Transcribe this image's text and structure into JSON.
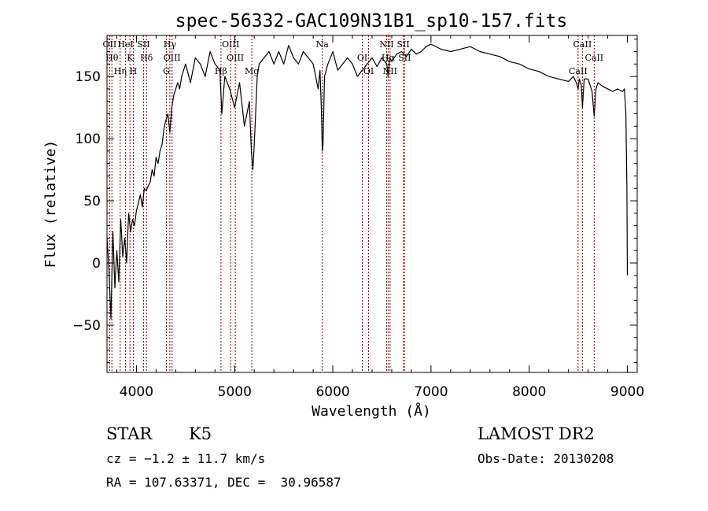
{
  "chart_data": {
    "type": "line",
    "title": "spec-56332-GAC109N31B1_sp10-157.fits",
    "xlabel": "Wavelength (Å)",
    "ylabel": "Flux (relative)",
    "xlim": [
      3700,
      9100
    ],
    "ylim": [
      -88,
      183
    ],
    "xticks": [
      {
        "value": 4000,
        "label": "4000"
      },
      {
        "value": 5000,
        "label": "5000"
      },
      {
        "value": 6000,
        "label": "6000"
      },
      {
        "value": 7000,
        "label": "7000"
      },
      {
        "value": 8000,
        "label": "8000"
      },
      {
        "value": 9000,
        "label": "9000"
      }
    ],
    "yticks": [
      {
        "value": -50,
        "label": "−50"
      },
      {
        "value": 0,
        "label": "0"
      },
      {
        "value": 50,
        "label": "50"
      },
      {
        "value": 100,
        "label": "100"
      },
      {
        "value": 150,
        "label": "150"
      }
    ],
    "line_color": "#000000",
    "marker_color": "#8b0000",
    "series": [
      {
        "x": [
          3700,
          3720,
          3740,
          3760,
          3780,
          3800,
          3820,
          3840,
          3860,
          3880,
          3900,
          3920,
          3940,
          3960,
          3980,
          4000,
          4020,
          4040,
          4060,
          4080,
          4100,
          4120,
          4140,
          4160,
          4180,
          4200,
          4220,
          4240,
          4260,
          4280,
          4300,
          4320,
          4340,
          4360,
          4380,
          4400,
          4420,
          4440,
          4460,
          4480,
          4500,
          4550,
          4600,
          4650,
          4700,
          4750,
          4800,
          4850,
          4870,
          4900,
          4950,
          5000,
          5050,
          5100,
          5150,
          5170,
          5185,
          5200,
          5230,
          5250,
          5300,
          5350,
          5400,
          5450,
          5500,
          5550,
          5600,
          5650,
          5700,
          5750,
          5800,
          5850,
          5870,
          5885,
          5893,
          5900,
          5915,
          5950,
          6000,
          6050,
          6100,
          6150,
          6200,
          6250,
          6300,
          6350,
          6400,
          6450,
          6500,
          6550,
          6563,
          6580,
          6600,
          6650,
          6700,
          6750,
          6800,
          6850,
          6900,
          6950,
          7000,
          7100,
          7200,
          7300,
          7400,
          7500,
          7600,
          7700,
          7800,
          7900,
          8000,
          8100,
          8200,
          8300,
          8400,
          8450,
          8480,
          8498,
          8510,
          8530,
          8542,
          8560,
          8600,
          8640,
          8662,
          8680,
          8700,
          8750,
          8800,
          8850,
          8900,
          8950,
          8970,
          8985,
          8995,
          9000
        ],
        "y": [
          20,
          -5,
          -45,
          25,
          -20,
          10,
          -15,
          35,
          5,
          20,
          0,
          40,
          25,
          35,
          30,
          42,
          48,
          55,
          45,
          60,
          58,
          62,
          65,
          75,
          70,
          85,
          80,
          90,
          95,
          108,
          115,
          120,
          105,
          125,
          135,
          140,
          145,
          140,
          150,
          155,
          160,
          145,
          165,
          160,
          150,
          170,
          160,
          155,
          120,
          150,
          140,
          125,
          145,
          110,
          130,
          90,
          75,
          95,
          150,
          160,
          165,
          170,
          160,
          170,
          160,
          175,
          165,
          160,
          170,
          165,
          160,
          140,
          155,
          120,
          90,
          95,
          150,
          160,
          170,
          155,
          160,
          165,
          160,
          150,
          155,
          160,
          165,
          158,
          165,
          160,
          150,
          165,
          162,
          168,
          170,
          166,
          172,
          168,
          170,
          174,
          176,
          172,
          170,
          172,
          174,
          170,
          168,
          166,
          162,
          160,
          156,
          154,
          150,
          148,
          146,
          150,
          145,
          140,
          148,
          143,
          125,
          148,
          148,
          138,
          118,
          140,
          145,
          142,
          140,
          138,
          140,
          138,
          140,
          120,
          60,
          -10
        ]
      }
    ],
    "lines": [
      {
        "wavelength": 3727,
        "label": "OII"
      },
      {
        "wavelength": 3750,
        "label": "Hθ"
      },
      {
        "wavelength": 3835,
        "label": "Hη"
      },
      {
        "wavelength": 3889,
        "label": "HeI"
      },
      {
        "wavelength": 3934,
        "label": "K"
      },
      {
        "wavelength": 3968,
        "label": "H"
      },
      {
        "wavelength": 4072,
        "label": "SII"
      },
      {
        "wavelength": 4102,
        "label": "Hδ"
      },
      {
        "wavelength": 4305,
        "label": "G"
      },
      {
        "wavelength": 4340,
        "label": "Hγ"
      },
      {
        "wavelength": 4363,
        "label": "OIII"
      },
      {
        "wavelength": 4861,
        "label": "Hβ"
      },
      {
        "wavelength": 4959,
        "label": "OIII"
      },
      {
        "wavelength": 5007,
        "label": "OIII"
      },
      {
        "wavelength": 5175,
        "label": "Mg"
      },
      {
        "wavelength": 5893,
        "label": "Na"
      },
      {
        "wavelength": 6300,
        "label": "OI"
      },
      {
        "wavelength": 6364,
        "label": "OI"
      },
      {
        "wavelength": 6548,
        "label": "NII"
      },
      {
        "wavelength": 6563,
        "label": "Hα"
      },
      {
        "wavelength": 6583,
        "label": "NII"
      },
      {
        "wavelength": 6717,
        "label": "SII"
      },
      {
        "wavelength": 6731,
        "label": "SII"
      },
      {
        "wavelength": 8498,
        "label": "CaII"
      },
      {
        "wavelength": 8542,
        "label": "CaII"
      },
      {
        "wavelength": 8662,
        "label": "CaII"
      }
    ]
  },
  "info": {
    "object_class": "STAR",
    "subclass": "K5",
    "survey": "LAMOST DR2",
    "cz": "cz = −1.2 ± 11.7 km/s",
    "obs_date": "Obs-Date: 20130208",
    "coords": "RA = 107.63371, DEC =  30.96587"
  }
}
